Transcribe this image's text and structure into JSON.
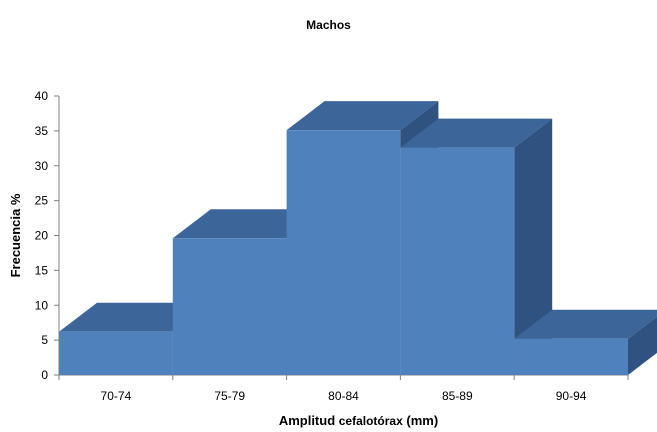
{
  "chart_data": {
    "type": "bar",
    "title": "Machos",
    "xlabel": "Amplitud cefalotórax (mm)",
    "xlabel_parts": [
      "Amplitud ",
      "cefalotórax",
      " (mm)"
    ],
    "ylabel": "Frecuencia %",
    "categories": [
      "70-74",
      "75-79",
      "80-84",
      "85-89",
      "90-94"
    ],
    "values": [
      6.2,
      19.6,
      35.1,
      32.6,
      5.2
    ],
    "ylim": [
      0,
      40
    ],
    "yticks": [
      0,
      5,
      10,
      15,
      20,
      25,
      30,
      35,
      40
    ],
    "grid": false,
    "legend": "none",
    "style": "3d-column-no-gap",
    "colors": {
      "front": "#4f81bd",
      "top": "#3c6699",
      "side": "#2f5280",
      "axis": "#808080"
    }
  }
}
